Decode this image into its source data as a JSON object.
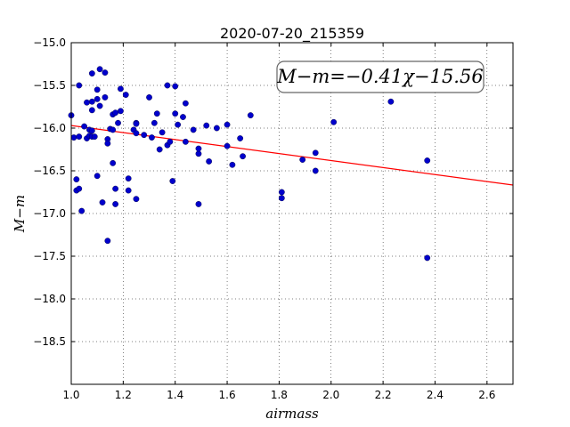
{
  "chart_data": {
    "type": "scatter",
    "title": "2020-07-20_215359",
    "xlabel": "airmass",
    "ylabel": "M−m",
    "xlim": [
      1.0,
      2.7
    ],
    "ylim": [
      -15.0,
      -19.0
    ],
    "y_inverted": true,
    "grid": true,
    "x_ticks": [
      "1.0",
      "1.2",
      "1.4",
      "1.6",
      "1.8",
      "2.0",
      "2.2",
      "2.4",
      "2.6"
    ],
    "y_ticks": [
      "−15.0",
      "−15.5",
      "−16.0",
      "−16.5",
      "−17.0",
      "−17.5",
      "−18.0",
      "−18.5"
    ],
    "annotation": "M−m=−0.41χ−15.56",
    "fit": {
      "slope": -0.41,
      "intercept": -15.56,
      "color": "#ff0000"
    },
    "point_color": "#0000cc",
    "points": [
      [
        1.0,
        -15.85
      ],
      [
        1.01,
        -16.11
      ],
      [
        1.02,
        -16.73
      ],
      [
        1.02,
        -16.6
      ],
      [
        1.03,
        -16.71
      ],
      [
        1.03,
        -16.1
      ],
      [
        1.03,
        -15.5
      ],
      [
        1.04,
        -16.97
      ],
      [
        1.05,
        -15.98
      ],
      [
        1.06,
        -15.7
      ],
      [
        1.06,
        -16.12
      ],
      [
        1.07,
        -16.09
      ],
      [
        1.07,
        -16.02
      ],
      [
        1.08,
        -16.03
      ],
      [
        1.08,
        -16.1
      ],
      [
        1.08,
        -15.79
      ],
      [
        1.08,
        -15.69
      ],
      [
        1.08,
        -15.36
      ],
      [
        1.09,
        -16.1
      ],
      [
        1.1,
        -15.55
      ],
      [
        1.1,
        -15.66
      ],
      [
        1.1,
        -16.56
      ],
      [
        1.11,
        -15.31
      ],
      [
        1.11,
        -15.74
      ],
      [
        1.12,
        -16.87
      ],
      [
        1.13,
        -15.35
      ],
      [
        1.13,
        -15.64
      ],
      [
        1.14,
        -16.13
      ],
      [
        1.14,
        -16.18
      ],
      [
        1.14,
        -17.32
      ],
      [
        1.15,
        -16.01
      ],
      [
        1.16,
        -16.02
      ],
      [
        1.16,
        -16.41
      ],
      [
        1.16,
        -15.84
      ],
      [
        1.17,
        -15.82
      ],
      [
        1.17,
        -16.89
      ],
      [
        1.17,
        -16.71
      ],
      [
        1.18,
        -15.94
      ],
      [
        1.19,
        -15.54
      ],
      [
        1.19,
        -15.8
      ],
      [
        1.21,
        -15.61
      ],
      [
        1.22,
        -16.59
      ],
      [
        1.22,
        -16.73
      ],
      [
        1.24,
        -16.02
      ],
      [
        1.25,
        -15.94
      ],
      [
        1.25,
        -15.95
      ],
      [
        1.25,
        -16.06
      ],
      [
        1.25,
        -16.83
      ],
      [
        1.28,
        -16.08
      ],
      [
        1.3,
        -15.64
      ],
      [
        1.31,
        -16.11
      ],
      [
        1.32,
        -15.94
      ],
      [
        1.33,
        -15.83
      ],
      [
        1.34,
        -16.25
      ],
      [
        1.35,
        -16.05
      ],
      [
        1.37,
        -16.2
      ],
      [
        1.37,
        -15.5
      ],
      [
        1.38,
        -16.16
      ],
      [
        1.39,
        -16.62
      ],
      [
        1.4,
        -15.51
      ],
      [
        1.4,
        -15.83
      ],
      [
        1.41,
        -15.96
      ],
      [
        1.43,
        -15.87
      ],
      [
        1.44,
        -15.71
      ],
      [
        1.44,
        -16.16
      ],
      [
        1.47,
        -16.02
      ],
      [
        1.49,
        -16.3
      ],
      [
        1.49,
        -16.24
      ],
      [
        1.49,
        -16.89
      ],
      [
        1.52,
        -15.97
      ],
      [
        1.53,
        -16.39
      ],
      [
        1.56,
        -16.0
      ],
      [
        1.6,
        -16.21
      ],
      [
        1.6,
        -15.96
      ],
      [
        1.62,
        -16.43
      ],
      [
        1.65,
        -16.12
      ],
      [
        1.66,
        -16.33
      ],
      [
        1.69,
        -15.85
      ],
      [
        1.81,
        -16.82
      ],
      [
        1.81,
        -16.75
      ],
      [
        1.89,
        -16.37
      ],
      [
        1.94,
        -16.29
      ],
      [
        1.94,
        -16.5
      ],
      [
        2.01,
        -15.93
      ],
      [
        2.23,
        -15.69
      ],
      [
        2.37,
        -16.38
      ],
      [
        2.37,
        -17.52
      ]
    ]
  }
}
